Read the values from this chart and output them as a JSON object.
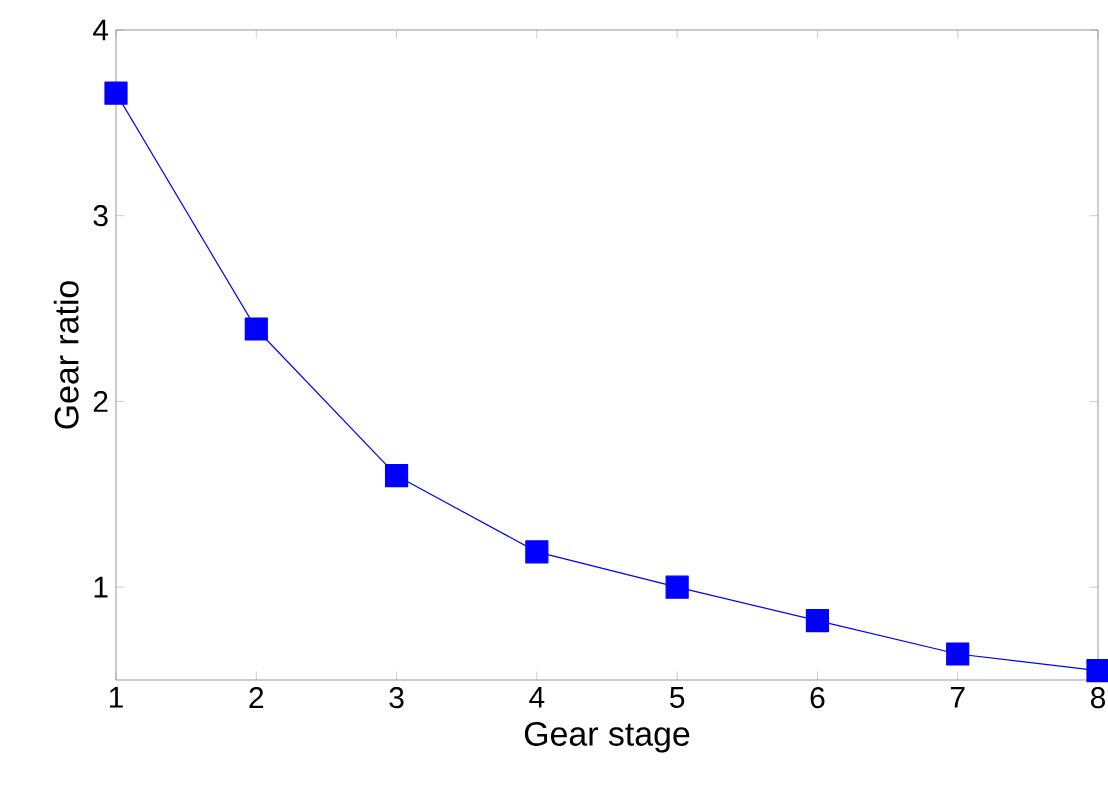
{
  "chart_data": {
    "type": "line",
    "xlabel": "Gear stage",
    "ylabel": "Gear ratio",
    "x": [
      1,
      2,
      3,
      4,
      5,
      6,
      7,
      8
    ],
    "series": [
      {
        "color": "#0000ff",
        "values": [
          3.66,
          2.39,
          1.6,
          1.19,
          1.0,
          0.82,
          0.64,
          0.55
        ]
      }
    ],
    "xlim": [
      1,
      8
    ],
    "ylim": [
      0.5,
      4
    ],
    "xticks": [
      1,
      2,
      3,
      4,
      5,
      6,
      7,
      8
    ],
    "yticks": [
      1,
      2,
      3,
      4
    ],
    "marker": "square",
    "grid": false
  }
}
